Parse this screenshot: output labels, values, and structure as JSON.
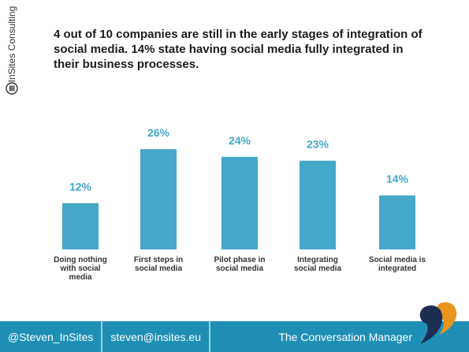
{
  "brand": {
    "name": "InSites Consulting",
    "icon": "insites-logo-icon"
  },
  "headline": "4 out of 10 companies are still in the early stages of integration of social media. 14% state having social media fully integrated in their business processes.",
  "chart_data": {
    "type": "bar",
    "categories": [
      [
        "Doing nothing",
        "with social",
        "media"
      ],
      [
        "First steps in",
        "social media"
      ],
      [
        "Pilot phase in",
        "social media"
      ],
      [
        "Integrating",
        "social media"
      ],
      [
        "Social media is",
        "integrated"
      ]
    ],
    "values": [
      12,
      26,
      24,
      23,
      14
    ],
    "value_labels": [
      "12%",
      "26%",
      "24%",
      "23%",
      "14%"
    ],
    "ylim": [
      0,
      26
    ],
    "grid": false,
    "bar_color": "#45a8c9",
    "label_color": "#45a8c9"
  },
  "footer": {
    "handle": "@Steven_InSites",
    "email": "steven@insites.eu",
    "tagline": "The Conversation Manager",
    "quote_icon": "quote-mark-icon"
  },
  "colors": {
    "footer_bg": "#1f8fb5",
    "accent_orange": "#e8941e",
    "accent_navy": "#1d2e52"
  }
}
